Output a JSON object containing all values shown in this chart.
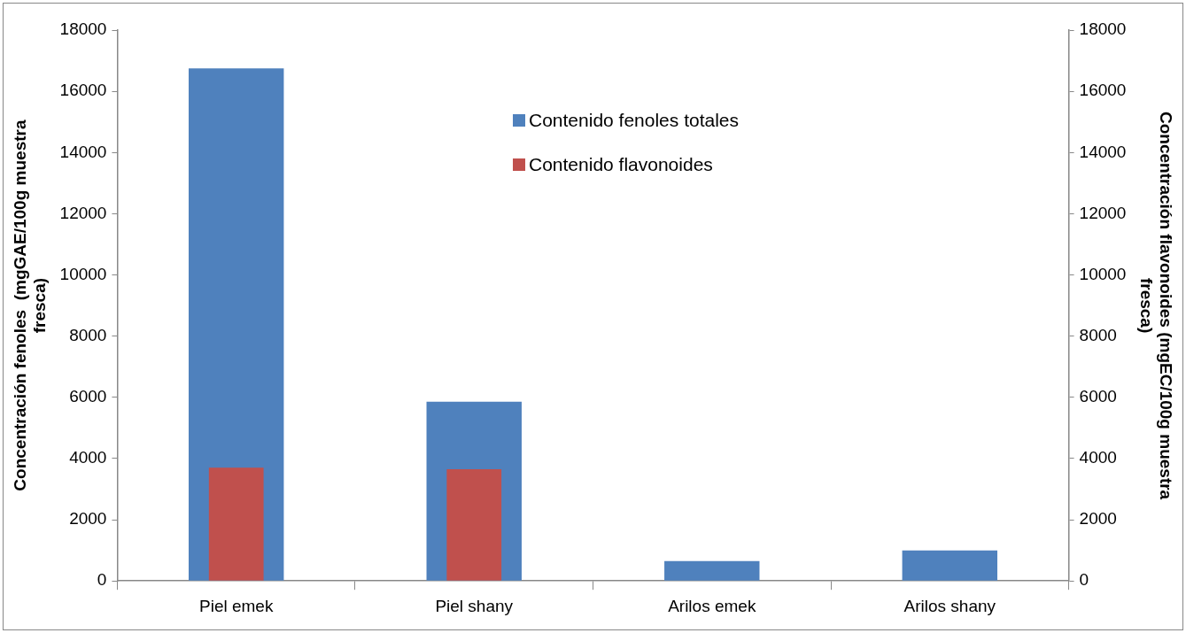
{
  "chart_data": {
    "type": "bar",
    "categories": [
      "Piel emek",
      "Piel shany",
      "Arilos emek",
      "Arilos shany"
    ],
    "series": [
      {
        "name": "Contenido fenoles totales",
        "color": "#4f81bd",
        "values": [
          16750,
          5860,
          650,
          1000
        ]
      },
      {
        "name": "Contenido flavonoides",
        "color": "#c0504d",
        "values": [
          3700,
          3650,
          null,
          null
        ],
        "axis": "y2"
      }
    ],
    "ylabel": "Concentración fenoles  (mgGAE/100g muestra fresca)",
    "y2label": "Concentración flavonoides (mgEC/100g muestra fresca)",
    "ylim": [
      0,
      18000
    ],
    "yticks": [
      0,
      2000,
      4000,
      6000,
      8000,
      10000,
      12000,
      14000,
      16000,
      18000
    ],
    "y2lim": [
      0,
      18000
    ],
    "y2ticks": [
      0,
      2000,
      4000,
      6000,
      8000,
      10000,
      12000,
      14000,
      16000,
      18000
    ],
    "grid": false,
    "legend": "top"
  }
}
